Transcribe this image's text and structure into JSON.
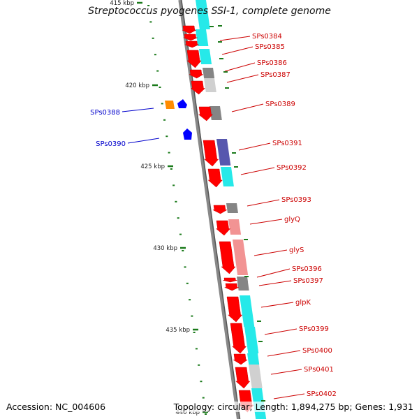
{
  "title": "Streptococcus pyogenes SSI-1, complete genome",
  "footer": {
    "accession": "Accession: NC_004606",
    "summary": "Topology: circular; Length: 1,894,275 bp; Genes: 1,931"
  },
  "ticks": [
    "415 kbp",
    "420 kbp",
    "425 kbp",
    "430 kbp",
    "435 kbp",
    "440 kbp"
  ],
  "colors": {
    "forward_gene": "#ff0000",
    "reverse_gene": "#0000ff",
    "label_forward": "#cc0000",
    "label_reverse": "#0000cc",
    "cyan_feature": "#00e5e5",
    "gray_feature": "#707070",
    "pink_feature": "#f08080",
    "navy_feature": "#3a3aa0",
    "tick": "#1a7a1a"
  },
  "genes": [
    {
      "label": "SPs0384",
      "strand": "+"
    },
    {
      "label": "SPs0385",
      "strand": "+"
    },
    {
      "label": "SPs0386",
      "strand": "+"
    },
    {
      "label": "SPs0387",
      "strand": "+"
    },
    {
      "label": "SPs0388",
      "strand": "-"
    },
    {
      "label": "SPs0389",
      "strand": "+"
    },
    {
      "label": "SPs0390",
      "strand": "-"
    },
    {
      "label": "SPs0391",
      "strand": "+"
    },
    {
      "label": "SPs0392",
      "strand": "+"
    },
    {
      "label": "SPs0393",
      "strand": "+"
    },
    {
      "label": "glyQ",
      "strand": "+"
    },
    {
      "label": "glyS",
      "strand": "+"
    },
    {
      "label": "SPs0396",
      "strand": "+"
    },
    {
      "label": "SPs0397",
      "strand": "+"
    },
    {
      "label": "glpK",
      "strand": "+"
    },
    {
      "label": "SPs0399",
      "strand": "+"
    },
    {
      "label": "SPs0400",
      "strand": "+"
    },
    {
      "label": "SPs0401",
      "strand": "+"
    },
    {
      "label": "SPs0402",
      "strand": "+"
    }
  ]
}
